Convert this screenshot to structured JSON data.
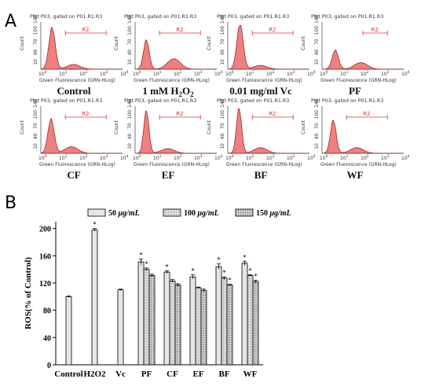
{
  "panel_a": {
    "label": "A",
    "histograms": [
      {
        "title": "Plot P03, gated on P01.R1.R3",
        "gate": "R2",
        "caption": "Control"
      },
      {
        "title": "Plot P03, gated on P01.R1.R3",
        "gate": "R2",
        "caption": "1 mM H",
        "caption_sub1": "2",
        "caption_mid": "O",
        "caption_sub2": "2"
      },
      {
        "title": "Plot P03, gated on P01.R1.R3",
        "gate": "R2",
        "caption": "0.01 mg/ml Vc"
      },
      {
        "title": "Plot P03, gated on P01.R1.R3",
        "gate": "R2",
        "caption": "PF"
      },
      {
        "title": "Plot P03, gated on P01.R1.R3",
        "gate": "R2",
        "caption": "CF"
      },
      {
        "title": "Plot P03, gated on P01.R1.R3",
        "gate": "R2",
        "caption": "EF"
      },
      {
        "title": "Plot P03, gated on P01.R1.R3",
        "gate": "R2",
        "caption": "BF"
      },
      {
        "title": "Plot P03, gated on P01.R1.R3",
        "gate": "R2",
        "caption": "WF"
      }
    ],
    "xlabel": "Green Fluorescence (GRN-HLog)",
    "ylabel": "Count",
    "yticks": [
      "10",
      "40",
      "70",
      "100",
      "140"
    ],
    "xticks": [
      "10",
      "10",
      "10",
      "10",
      "10"
    ],
    "xtick_exp": [
      "0",
      "1",
      "2",
      "3",
      "4"
    ],
    "fill_color": "#f08080"
  },
  "chart_data": {
    "type": "bar",
    "label": "B",
    "categories": [
      "Control",
      "H2O2",
      "Vc",
      "PF",
      "CF",
      "EF",
      "BF",
      "WF"
    ],
    "legend": {
      "placement": "top",
      "unit": "μg/mL"
    },
    "series": [
      {
        "name": "50",
        "values": [
          100,
          198,
          110,
          151,
          136,
          129,
          144,
          149
        ],
        "errors": [
          1,
          2,
          1,
          4,
          2,
          3,
          4,
          3
        ],
        "sig": [
          false,
          true,
          false,
          true,
          true,
          true,
          true,
          true
        ]
      },
      {
        "name": "100",
        "values": [
          null,
          null,
          null,
          140,
          123,
          113,
          127,
          131
        ],
        "errors": [
          null,
          null,
          null,
          2,
          2,
          1,
          2,
          1
        ],
        "sig": [
          false,
          false,
          false,
          true,
          false,
          false,
          true,
          true
        ]
      },
      {
        "name": "150",
        "values": [
          null,
          null,
          null,
          131,
          117,
          109,
          117,
          122
        ],
        "errors": [
          null,
          null,
          null,
          2,
          2,
          2,
          1,
          2
        ],
        "sig": [
          false,
          false,
          false,
          false,
          false,
          false,
          true,
          true
        ]
      }
    ],
    "ylabel": "ROS(% of Control)",
    "yticks": [
      0,
      40,
      80,
      120,
      160,
      200
    ],
    "ylim": [
      0,
      210
    ],
    "sig_marker": "*"
  }
}
